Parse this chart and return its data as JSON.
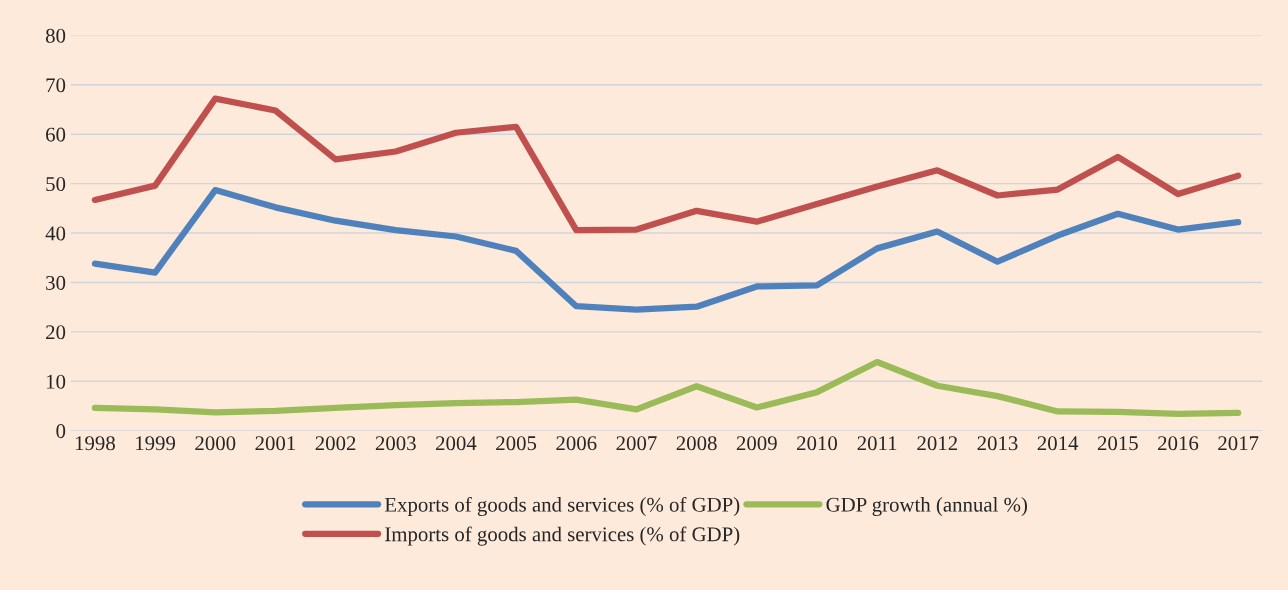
{
  "chart_data": {
    "type": "line",
    "categories": [
      "1998",
      "1999",
      "2000",
      "2001",
      "2002",
      "2003",
      "2004",
      "2005",
      "2006",
      "2007",
      "2008",
      "2009",
      "2010",
      "2011",
      "2012",
      "2013",
      "2014",
      "2015",
      "2016",
      "2017"
    ],
    "series": [
      {
        "name": "Exports of goods and services (% of GDP)",
        "color": "#4f81bd",
        "values": [
          33.8,
          32.0,
          48.7,
          45.2,
          42.5,
          40.6,
          39.3,
          36.4,
          25.2,
          24.5,
          25.1,
          29.2,
          29.4,
          36.9,
          40.3,
          34.2,
          39.5,
          43.9,
          40.7,
          42.2
        ]
      },
      {
        "name": "Imports of goods and services (% of GDP)",
        "color": "#c0504d",
        "values": [
          46.7,
          49.6,
          67.2,
          64.8,
          54.9,
          56.5,
          60.3,
          61.5,
          40.6,
          40.7,
          44.5,
          42.3,
          45.9,
          49.4,
          52.7,
          47.6,
          48.8,
          55.4,
          47.9,
          51.6
        ]
      },
      {
        "name": "GDP growth (annual %)",
        "color": "#9bbb59",
        "values": [
          4.6,
          4.3,
          3.7,
          4.0,
          4.6,
          5.2,
          5.6,
          5.8,
          6.3,
          4.3,
          9.0,
          4.7,
          7.8,
          13.9,
          9.1,
          7.0,
          3.9,
          3.8,
          3.4,
          3.6
        ]
      }
    ],
    "ylim": [
      0,
      80
    ],
    "yticks": [
      0,
      10,
      20,
      30,
      40,
      50,
      60,
      70,
      80
    ],
    "grid": "y",
    "legend": "bottom",
    "marker": "none",
    "line_style": "solid"
  }
}
